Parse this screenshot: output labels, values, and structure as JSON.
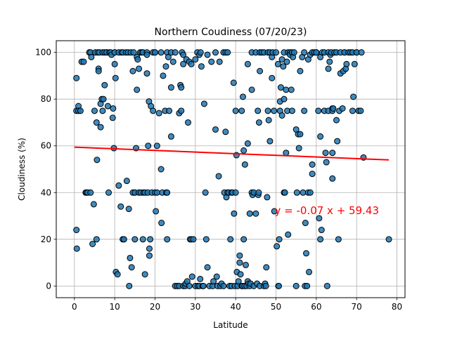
{
  "chart_data": {
    "type": "scatter",
    "title": "Northern Coudiness (07/20/23)",
    "xlabel": "Latitude",
    "ylabel": "Cloudiness (%)",
    "xlim": [
      -4.5,
      82
    ],
    "ylim": [
      -5,
      105
    ],
    "xticks": [
      0,
      10,
      20,
      30,
      40,
      50,
      60,
      70,
      80
    ],
    "yticks": [
      0,
      20,
      40,
      60,
      80,
      100
    ],
    "grid": true,
    "point_color": "#1f77b4",
    "point_edge_color": "#000000",
    "regression": {
      "slope": -0.07,
      "intercept": 59.43,
      "x_range": [
        0,
        78
      ],
      "color": "#ff0000",
      "equation": "y = -0.07 x + 59.43",
      "label_position": [
        50,
        31
      ]
    },
    "points": [
      [
        0.5,
        75
      ],
      [
        0.5,
        89
      ],
      [
        0.5,
        24
      ],
      [
        0.6,
        16
      ],
      [
        1,
        77
      ],
      [
        1,
        75
      ],
      [
        1.5,
        75
      ],
      [
        1.8,
        96
      ],
      [
        2.3,
        96
      ],
      [
        2.8,
        40
      ],
      [
        3,
        40
      ],
      [
        3.3,
        40
      ],
      [
        3.7,
        100
      ],
      [
        4,
        40
      ],
      [
        4,
        100
      ],
      [
        4.2,
        98
      ],
      [
        4.5,
        18
      ],
      [
        4.8,
        35
      ],
      [
        5,
        75
      ],
      [
        5.2,
        100
      ],
      [
        5.5,
        70
      ],
      [
        5.5,
        20
      ],
      [
        5.6,
        54
      ],
      [
        5.8,
        100
      ],
      [
        6,
        93
      ],
      [
        6,
        92
      ],
      [
        6.2,
        100
      ],
      [
        6.5,
        78
      ],
      [
        6.5,
        68
      ],
      [
        6.8,
        80
      ],
      [
        7,
        75
      ],
      [
        7,
        100
      ],
      [
        7.2,
        80
      ],
      [
        7.5,
        86
      ],
      [
        7.5,
        100
      ],
      [
        8,
        100
      ],
      [
        8,
        100
      ],
      [
        8.3,
        77
      ],
      [
        8.5,
        40
      ],
      [
        8.7,
        100
      ],
      [
        9,
        100
      ],
      [
        9.2,
        99
      ],
      [
        9.5,
        72
      ],
      [
        9.6,
        76
      ],
      [
        9.8,
        59
      ],
      [
        10,
        100
      ],
      [
        10,
        100
      ],
      [
        10,
        95
      ],
      [
        10.2,
        89
      ],
      [
        10.3,
        6
      ],
      [
        10.7,
        5
      ],
      [
        11,
        100
      ],
      [
        11,
        43
      ],
      [
        11.5,
        34
      ],
      [
        11.7,
        100
      ],
      [
        12,
        100
      ],
      [
        12,
        20
      ],
      [
        12.3,
        20
      ],
      [
        12.8,
        100
      ],
      [
        13,
        45
      ],
      [
        13.3,
        100
      ],
      [
        13.5,
        33
      ],
      [
        13.6,
        0
      ],
      [
        13.8,
        12
      ],
      [
        14,
        100
      ],
      [
        14.2,
        8
      ],
      [
        14.5,
        92
      ],
      [
        14.5,
        40
      ],
      [
        14.7,
        100
      ],
      [
        15,
        40
      ],
      [
        15,
        40
      ],
      [
        15,
        20
      ],
      [
        15.3,
        59
      ],
      [
        15.5,
        84
      ],
      [
        15.5,
        98
      ],
      [
        15.7,
        97
      ],
      [
        16,
        93
      ],
      [
        16,
        40
      ],
      [
        16.3,
        100
      ],
      [
        16.5,
        40
      ],
      [
        16.7,
        100
      ],
      [
        17,
        100
      ],
      [
        17,
        20
      ],
      [
        17.2,
        40
      ],
      [
        17.5,
        40
      ],
      [
        17.5,
        5
      ],
      [
        18,
        100
      ],
      [
        18,
        91
      ],
      [
        18,
        99
      ],
      [
        18.2,
        40
      ],
      [
        18.3,
        60
      ],
      [
        18.5,
        79
      ],
      [
        18.6,
        13
      ],
      [
        18.6,
        16
      ],
      [
        18.8,
        20
      ],
      [
        19,
        77
      ],
      [
        19.2,
        40
      ],
      [
        19.5,
        100
      ],
      [
        19.5,
        75
      ],
      [
        20,
        100
      ],
      [
        20,
        100
      ],
      [
        20,
        40
      ],
      [
        20.2,
        32
      ],
      [
        20.5,
        40
      ],
      [
        20.5,
        60
      ],
      [
        21,
        74
      ],
      [
        21.5,
        100
      ],
      [
        21.5,
        50
      ],
      [
        21.6,
        27
      ],
      [
        21.8,
        40
      ],
      [
        22,
        90
      ],
      [
        22.5,
        75
      ],
      [
        22.7,
        94
      ],
      [
        22.8,
        40
      ],
      [
        23,
        100
      ],
      [
        23,
        40
      ],
      [
        23,
        20
      ],
      [
        23.3,
        98
      ],
      [
        23.5,
        75
      ],
      [
        24,
        100
      ],
      [
        24,
        64
      ],
      [
        24,
        85
      ],
      [
        24.5,
        96
      ],
      [
        25,
        100
      ],
      [
        25,
        0
      ],
      [
        25.5,
        0
      ],
      [
        26,
        74
      ],
      [
        26,
        0
      ],
      [
        26.3,
        86
      ],
      [
        26.5,
        75
      ],
      [
        26.5,
        85
      ],
      [
        26.7,
        100
      ],
      [
        27,
        99
      ],
      [
        27,
        0
      ],
      [
        27,
        95
      ],
      [
        27.5,
        0
      ],
      [
        27.6,
        1
      ],
      [
        27.8,
        97
      ],
      [
        28,
        2
      ],
      [
        28.2,
        70
      ],
      [
        28.5,
        96
      ],
      [
        28.5,
        0
      ],
      [
        28.7,
        20
      ],
      [
        29,
        95
      ],
      [
        29,
        20
      ],
      [
        29.2,
        4
      ],
      [
        29.5,
        20
      ],
      [
        30,
        0
      ],
      [
        30,
        97
      ],
      [
        30.5,
        100
      ],
      [
        30.6,
        0
      ],
      [
        31,
        99
      ],
      [
        31,
        0
      ],
      [
        31.2,
        3
      ],
      [
        31.3,
        100
      ],
      [
        31.5,
        94
      ],
      [
        31.8,
        0
      ],
      [
        32,
        0
      ],
      [
        32.2,
        78
      ],
      [
        32.5,
        40
      ],
      [
        32.7,
        20
      ],
      [
        33,
        99
      ],
      [
        33,
        8
      ],
      [
        33.5,
        0
      ],
      [
        34,
        96
      ],
      [
        34.3,
        0
      ],
      [
        34.5,
        2
      ],
      [
        35,
        100
      ],
      [
        35,
        67
      ],
      [
        35.3,
        4
      ],
      [
        35.5,
        0
      ],
      [
        35.8,
        47
      ],
      [
        36,
        96
      ],
      [
        36.2,
        0
      ],
      [
        36.5,
        1
      ],
      [
        37,
        100
      ],
      [
        37,
        0
      ],
      [
        37.2,
        40
      ],
      [
        37.5,
        100
      ],
      [
        37.5,
        66
      ],
      [
        37.7,
        38
      ],
      [
        38,
        100
      ],
      [
        38,
        40
      ],
      [
        38.3,
        40
      ],
      [
        38.5,
        0
      ],
      [
        38.7,
        20
      ],
      [
        39,
        0
      ],
      [
        39,
        40
      ],
      [
        39.2,
        40
      ],
      [
        39.5,
        87
      ],
      [
        39.6,
        31
      ],
      [
        39.8,
        0
      ],
      [
        40,
        75
      ],
      [
        40,
        40
      ],
      [
        40.2,
        56
      ],
      [
        40.3,
        6
      ],
      [
        40.5,
        0
      ],
      [
        40.7,
        2
      ],
      [
        41,
        13
      ],
      [
        41,
        10
      ],
      [
        41.2,
        5
      ],
      [
        41.5,
        0
      ],
      [
        41.5,
        75
      ],
      [
        41.7,
        0
      ],
      [
        41.8,
        81
      ],
      [
        42,
        58
      ],
      [
        42,
        20
      ],
      [
        42.2,
        0
      ],
      [
        42.3,
        52
      ],
      [
        42.5,
        9
      ],
      [
        42.7,
        0
      ],
      [
        43,
        61
      ],
      [
        43,
        95
      ],
      [
        43,
        2
      ],
      [
        43.2,
        1
      ],
      [
        43.5,
        31
      ],
      [
        43.5,
        0
      ],
      [
        43.7,
        1
      ],
      [
        44,
        100
      ],
      [
        44,
        84
      ],
      [
        44,
        40
      ],
      [
        44.2,
        39
      ],
      [
        44.5,
        40
      ],
      [
        44.5,
        0
      ],
      [
        45,
        100
      ],
      [
        45,
        31
      ],
      [
        45.3,
        1
      ],
      [
        45.5,
        75
      ],
      [
        45.6,
        39
      ],
      [
        45.7,
        40
      ],
      [
        45.8,
        70
      ],
      [
        46,
        100
      ],
      [
        46,
        0
      ],
      [
        46,
        92
      ],
      [
        46.5,
        100
      ],
      [
        47,
        100
      ],
      [
        47,
        0
      ],
      [
        47.3,
        1
      ],
      [
        47.5,
        0
      ],
      [
        47.6,
        8
      ],
      [
        47.8,
        38
      ],
      [
        48,
        100
      ],
      [
        48,
        75
      ],
      [
        48.2,
        71
      ],
      [
        48.5,
        100
      ],
      [
        48.5,
        62
      ],
      [
        49,
        98
      ],
      [
        49,
        89
      ],
      [
        49.2,
        100
      ],
      [
        49.5,
        75
      ],
      [
        49.6,
        32
      ],
      [
        50,
        100
      ],
      [
        50.2,
        17
      ],
      [
        50.5,
        95
      ],
      [
        50.6,
        0
      ],
      [
        50.7,
        0
      ],
      [
        50.8,
        20
      ],
      [
        51,
        79
      ],
      [
        51,
        75
      ],
      [
        51.2,
        85
      ],
      [
        51.5,
        97
      ],
      [
        51.5,
        73
      ],
      [
        51.8,
        94
      ],
      [
        52,
        100
      ],
      [
        52,
        80
      ],
      [
        52,
        40
      ],
      [
        52.2,
        40
      ],
      [
        52.5,
        84
      ],
      [
        52.5,
        57
      ],
      [
        52.7,
        96
      ],
      [
        52.8,
        75
      ],
      [
        53,
        100
      ],
      [
        53,
        22
      ],
      [
        53.5,
        100
      ],
      [
        53.5,
        99
      ],
      [
        53.8,
        84
      ],
      [
        54,
        100
      ],
      [
        54,
        75
      ],
      [
        54.2,
        98
      ],
      [
        54.5,
        100
      ],
      [
        55,
        67
      ],
      [
        55,
        0
      ],
      [
        55.2,
        40
      ],
      [
        55.5,
        65
      ],
      [
        55.7,
        59
      ],
      [
        56,
        65
      ],
      [
        56,
        92
      ],
      [
        56.5,
        98
      ],
      [
        56.7,
        40
      ],
      [
        57,
        100
      ],
      [
        57,
        75
      ],
      [
        57.2,
        0
      ],
      [
        57.3,
        27
      ],
      [
        57.5,
        14
      ],
      [
        57.7,
        0
      ],
      [
        58,
        97
      ],
      [
        58,
        40
      ],
      [
        58.2,
        6
      ],
      [
        58.5,
        99
      ],
      [
        58.5,
        40
      ],
      [
        59,
        100
      ],
      [
        59,
        48
      ],
      [
        59,
        52
      ],
      [
        59.5,
        100
      ],
      [
        60,
        100
      ],
      [
        60,
        100
      ],
      [
        60.5,
        75
      ],
      [
        60.7,
        29
      ],
      [
        61,
        98
      ],
      [
        61,
        20
      ],
      [
        61,
        64
      ],
      [
        61.3,
        24
      ],
      [
        61.5,
        100
      ],
      [
        62,
        100
      ],
      [
        62,
        75
      ],
      [
        62.3,
        57
      ],
      [
        62.5,
        53
      ],
      [
        62.7,
        0
      ],
      [
        63,
        75
      ],
      [
        63,
        100
      ],
      [
        63,
        93
      ],
      [
        63.3,
        96
      ],
      [
        63.5,
        99
      ],
      [
        63.7,
        100
      ],
      [
        64,
        76
      ],
      [
        64,
        75
      ],
      [
        64,
        57
      ],
      [
        64,
        46
      ],
      [
        64.2,
        76
      ],
      [
        64.5,
        100
      ],
      [
        65,
        71
      ],
      [
        65,
        100
      ],
      [
        65.2,
        62
      ],
      [
        65.5,
        20
      ],
      [
        65.7,
        75
      ],
      [
        66,
        100
      ],
      [
        66,
        91
      ],
      [
        66.5,
        76
      ],
      [
        66.7,
        92
      ],
      [
        67,
        100
      ],
      [
        67,
        100
      ],
      [
        67.3,
        93
      ],
      [
        67.5,
        95
      ],
      [
        68,
        100
      ],
      [
        68.5,
        100
      ],
      [
        69,
        100
      ],
      [
        69,
        75
      ],
      [
        69.2,
        81
      ],
      [
        69.5,
        95
      ],
      [
        70,
        100
      ],
      [
        70,
        100
      ],
      [
        70.5,
        75
      ],
      [
        71,
        75
      ],
      [
        71.2,
        100
      ],
      [
        71.7,
        55
      ],
      [
        78,
        20
      ]
    ]
  }
}
